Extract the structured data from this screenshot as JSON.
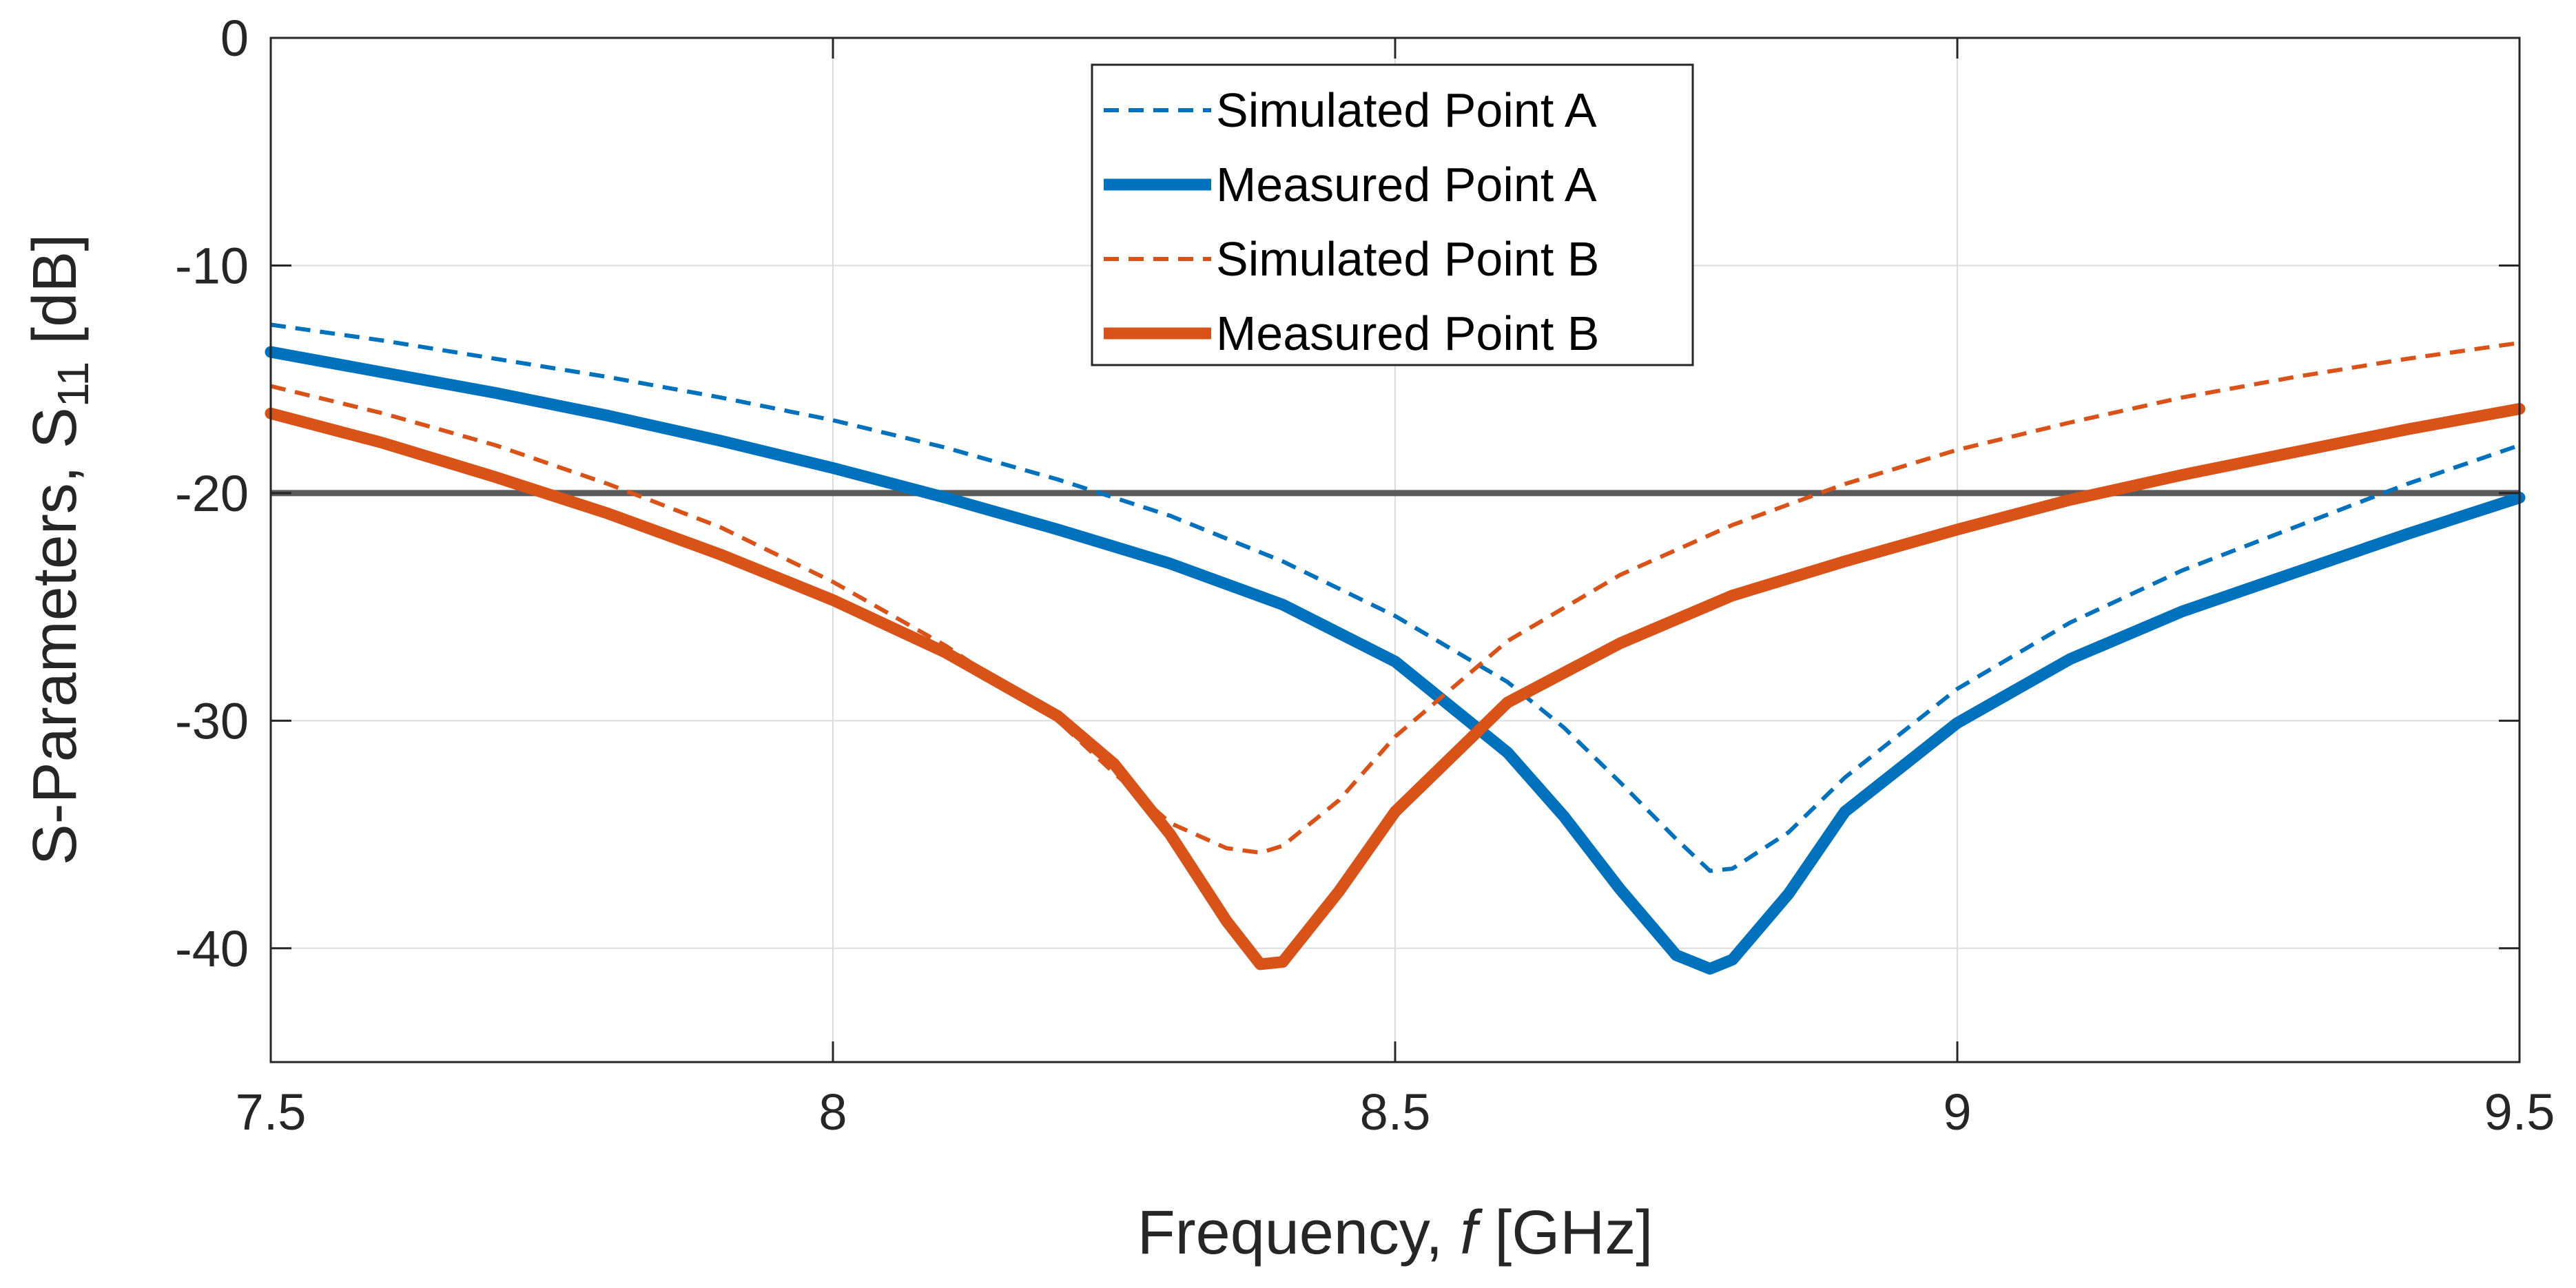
{
  "chart_data": {
    "type": "line",
    "title": "",
    "xlabel_prefix": "Frequency, ",
    "xlabel_var": "f",
    "xlabel_suffix": " [GHz]",
    "ylabel_main": "S-Parameters, S",
    "ylabel_sub": "11",
    "ylabel_unit": "  [dB]",
    "xlim": [
      7.5,
      9.5
    ],
    "ylim": [
      -45,
      0
    ],
    "xticks": [
      7.5,
      8,
      8.5,
      9,
      9.5
    ],
    "xtick_labels": [
      "7.5",
      "8",
      "8.5",
      "9",
      "9.5"
    ],
    "yticks": [
      0,
      -10,
      -20,
      -30,
      -40
    ],
    "ytick_labels": [
      "0",
      "-10",
      "-20",
      "-30",
      "-40"
    ],
    "grid": true,
    "legend_position": "top-center",
    "reference_line": {
      "y": -20,
      "color": "#5a5a5a"
    },
    "series": [
      {
        "name": "Simulated Point A",
        "style": "dashed",
        "color": "#0072BD",
        "x": [
          7.5,
          7.6,
          7.7,
          7.8,
          7.9,
          8.0,
          8.1,
          8.2,
          8.3,
          8.4,
          8.5,
          8.6,
          8.65,
          8.7,
          8.75,
          8.78,
          8.8,
          8.85,
          8.9,
          9.0,
          9.1,
          9.2,
          9.3,
          9.4,
          9.5
        ],
        "y": [
          -12.6,
          -13.3,
          -14.1,
          -14.9,
          -15.8,
          -16.8,
          -18.0,
          -19.4,
          -21.0,
          -23.0,
          -25.4,
          -28.3,
          -30.3,
          -32.7,
          -35.2,
          -36.6,
          -36.5,
          -34.9,
          -32.5,
          -28.6,
          -25.7,
          -23.4,
          -21.5,
          -19.6,
          -17.9
        ]
      },
      {
        "name": "Measured Point A",
        "style": "solid",
        "color": "#0072BD",
        "x": [
          7.5,
          7.6,
          7.7,
          7.8,
          7.9,
          8.0,
          8.1,
          8.2,
          8.3,
          8.4,
          8.5,
          8.6,
          8.65,
          8.7,
          8.75,
          8.78,
          8.8,
          8.85,
          8.9,
          9.0,
          9.1,
          9.2,
          9.3,
          9.4,
          9.5
        ],
        "y": [
          -13.8,
          -14.7,
          -15.6,
          -16.6,
          -17.7,
          -18.9,
          -20.2,
          -21.6,
          -23.1,
          -24.9,
          -27.4,
          -31.4,
          -34.2,
          -37.4,
          -40.3,
          -40.9,
          -40.5,
          -37.6,
          -34.0,
          -30.1,
          -27.3,
          -25.2,
          -23.5,
          -21.8,
          -20.2
        ]
      },
      {
        "name": "Simulated Point B",
        "style": "dashed",
        "color": "#D95319",
        "x": [
          7.5,
          7.6,
          7.7,
          7.8,
          7.9,
          8.0,
          8.1,
          8.2,
          8.25,
          8.3,
          8.35,
          8.38,
          8.4,
          8.45,
          8.5,
          8.6,
          8.7,
          8.8,
          8.9,
          9.0,
          9.1,
          9.2,
          9.3,
          9.4,
          9.5
        ],
        "y": [
          -15.3,
          -16.5,
          -17.9,
          -19.6,
          -21.5,
          -23.9,
          -26.7,
          -30.0,
          -32.3,
          -34.5,
          -35.6,
          -35.8,
          -35.5,
          -33.5,
          -30.7,
          -26.5,
          -23.6,
          -21.4,
          -19.6,
          -18.1,
          -16.9,
          -15.8,
          -14.9,
          -14.1,
          -13.4
        ]
      },
      {
        "name": "Measured Point B",
        "style": "solid",
        "color": "#D95319",
        "x": [
          7.5,
          7.6,
          7.7,
          7.8,
          7.9,
          8.0,
          8.1,
          8.2,
          8.25,
          8.3,
          8.35,
          8.38,
          8.4,
          8.45,
          8.5,
          8.6,
          8.7,
          8.8,
          8.9,
          9.0,
          9.1,
          9.2,
          9.3,
          9.4,
          9.5
        ],
        "y": [
          -16.5,
          -17.8,
          -19.3,
          -20.9,
          -22.7,
          -24.7,
          -27.0,
          -29.8,
          -31.9,
          -35.0,
          -38.8,
          -40.7,
          -40.6,
          -37.5,
          -34.0,
          -29.2,
          -26.6,
          -24.5,
          -23.0,
          -21.6,
          -20.3,
          -19.2,
          -18.2,
          -17.2,
          -16.3
        ]
      }
    ]
  }
}
